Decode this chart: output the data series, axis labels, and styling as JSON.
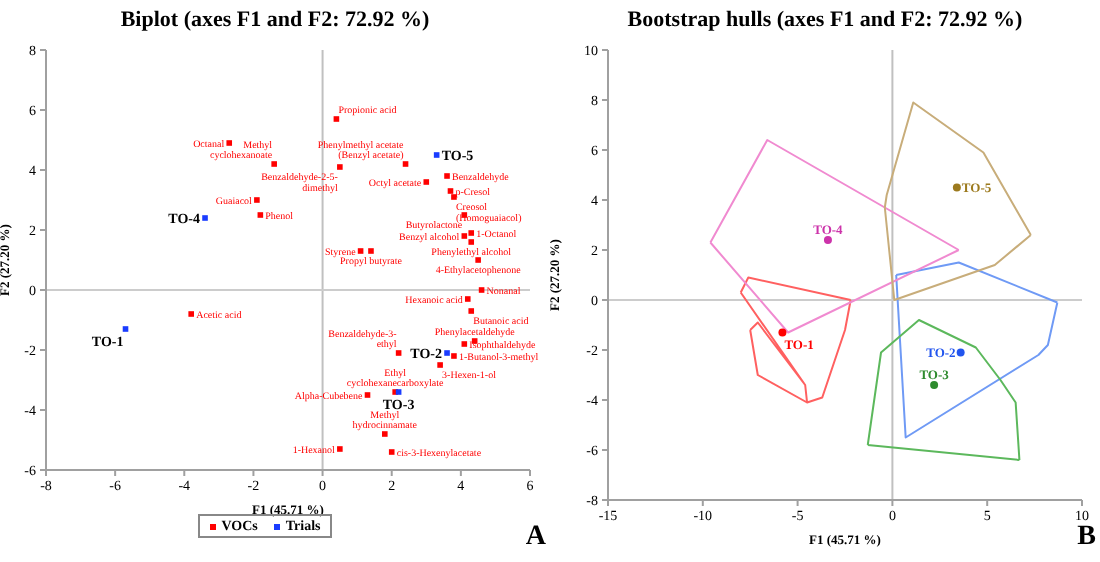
{
  "chart_data": [
    {
      "type": "scatter",
      "title": "Biplot (axes F1 and F2: 72.92 %)",
      "xlabel": "F1 (45.71 %)",
      "ylabel": "F2 (27.20 %)",
      "xlim": [
        -8,
        6
      ],
      "xticks": [
        -8,
        -6,
        -4,
        -2,
        0,
        2,
        4,
        6
      ],
      "ylim": [
        -6,
        8
      ],
      "yticks": [
        -6,
        -4,
        -2,
        0,
        2,
        4,
        6,
        8
      ],
      "grid": false,
      "legend": "bottom",
      "marker": "square",
      "ref_lines": [
        {
          "axis": "x",
          "value": 0,
          "color": "#c0c0c0"
        },
        {
          "axis": "y",
          "value": 0,
          "color": "#cccccc"
        }
      ],
      "series": [
        {
          "name": "VOCs",
          "color": "#ff0000",
          "x": [
            -2.7,
            -1.4,
            -1.9,
            -1.8,
            -3.8,
            0.4,
            2.4,
            0.5,
            3.6,
            3.0,
            3.7,
            3.8,
            4.1,
            4.3,
            4.1,
            4.3,
            1.1,
            1.4,
            4.5,
            4.6,
            4.2,
            4.3,
            4.4,
            4.1,
            3.8,
            3.4,
            2.2,
            2.1,
            1.3,
            1.8,
            2.0,
            0.5
          ],
          "values": [
            4.9,
            4.2,
            3.0,
            2.5,
            -0.8,
            5.7,
            4.2,
            4.1,
            3.8,
            3.6,
            3.3,
            3.1,
            2.5,
            1.9,
            1.8,
            1.6,
            1.3,
            1.3,
            1.0,
            0.0,
            -0.3,
            -0.7,
            -1.7,
            -1.8,
            -2.2,
            -2.5,
            -2.1,
            -3.4,
            -3.5,
            -4.8,
            -5.4,
            -5.3
          ]
        },
        {
          "name": "Trials",
          "color": "#1a3cff",
          "x": [
            -5.7,
            3.6,
            2.2,
            -3.4,
            3.3
          ],
          "values": [
            -1.3,
            -2.1,
            -3.4,
            2.4,
            4.5
          ]
        }
      ],
      "annotations": [
        "A",
        {
          "text": "Octanal",
          "x": -2.7,
          "y": 4.9
        },
        {
          "text": "Methyl cyclohexanoate",
          "x": -1.4,
          "y": 4.2
        },
        {
          "text": "Guaiacol",
          "x": -1.9,
          "y": 3.0
        },
        {
          "text": "Phenol",
          "x": -1.8,
          "y": 2.5
        },
        {
          "text": "Acetic acid",
          "x": -3.8,
          "y": -0.8
        },
        {
          "text": "Propionic acid",
          "x": 0.4,
          "y": 5.7
        },
        {
          "text": "Phenylmethyl acetate (Benzyl acetate)",
          "x": 2.4,
          "y": 4.2
        },
        {
          "text": "Benzaldehyde-2-5-dimethyl",
          "x": 0.5,
          "y": 4.1
        },
        {
          "text": "Benzaldehyde",
          "x": 3.6,
          "y": 3.8
        },
        {
          "text": "Octyl acetate",
          "x": 3.0,
          "y": 3.6
        },
        {
          "text": "p-Cresol",
          "x": 3.7,
          "y": 3.3
        },
        {
          "text": "Creosol (Homoguaiacol)",
          "x": 3.8,
          "y": 3.1
        },
        {
          "text": "Butyrolactone",
          "x": 4.1,
          "y": 2.5
        },
        {
          "text": "1-Octanol",
          "x": 4.3,
          "y": 1.9
        },
        {
          "text": "Benzyl alcohol",
          "x": 4.1,
          "y": 1.8
        },
        {
          "text": "Phenylethyl alcohol",
          "x": 4.3,
          "y": 1.6
        },
        {
          "text": "Styrene",
          "x": 1.1,
          "y": 1.3
        },
        {
          "text": "Propyl butyrate",
          "x": 1.4,
          "y": 1.3
        },
        {
          "text": "4-Ethylacetophenone",
          "x": 4.5,
          "y": 1.0
        },
        {
          "text": "Nonanal",
          "x": 4.6,
          "y": 0.0
        },
        {
          "text": "Hexanoic acid",
          "x": 4.2,
          "y": -0.3
        },
        {
          "text": "Butanoic acid",
          "x": 4.3,
          "y": -0.7
        },
        {
          "text": "Phenylacetaldehyde",
          "x": 4.4,
          "y": -1.7
        },
        {
          "text": "Isophthaldehyde",
          "x": 4.1,
          "y": -1.8
        },
        {
          "text": "1-Butanol-3-methyl",
          "x": 3.8,
          "y": -2.2
        },
        {
          "text": "3-Hexen-1-ol",
          "x": 3.4,
          "y": -2.5
        },
        {
          "text": "Benzaldehyde-3-ethyl",
          "x": 2.2,
          "y": -2.1
        },
        {
          "text": "Ethyl cyclohexanecarboxylate",
          "x": 2.1,
          "y": -3.4
        },
        {
          "text": "Alpha-Cubebene",
          "x": 1.3,
          "y": -3.5
        },
        {
          "text": "Methyl hydrocinnamate",
          "x": 1.8,
          "y": -4.8
        },
        {
          "text": "cis-3-Hexenylacetate",
          "x": 2.0,
          "y": -5.4
        },
        {
          "text": "1-Hexanol",
          "x": 0.5,
          "y": -5.3
        },
        {
          "text": "TO-1",
          "x": -5.7,
          "y": -1.3
        },
        {
          "text": "TO-2",
          "x": 3.6,
          "y": -2.1
        },
        {
          "text": "TO-3",
          "x": 2.2,
          "y": -3.4
        },
        {
          "text": "TO-4",
          "x": -3.4,
          "y": 2.4
        },
        {
          "text": "TO-5",
          "x": 3.3,
          "y": 4.5
        }
      ]
    },
    {
      "type": "line",
      "title": "Bootstrap hulls (axes F1 and F2: 72.92 %)",
      "xlabel": "F1 (45.71 %)",
      "ylabel": "F2 (27.20 %)",
      "xlim": [
        -15,
        10
      ],
      "xticks": [
        -15,
        -10,
        -5,
        0,
        5,
        10
      ],
      "ylim": [
        -8,
        10
      ],
      "yticks": [
        -8,
        -6,
        -4,
        -2,
        0,
        2,
        4,
        6,
        8,
        10
      ],
      "grid": false,
      "legend": false,
      "marker": "none",
      "line_style": "solid",
      "ref_lines": [
        {
          "axis": "x",
          "value": 0,
          "color": "#c0c0c0"
        },
        {
          "axis": "y",
          "value": 0,
          "color": "#cccccc"
        }
      ],
      "series": [
        {
          "color": "#ff6060",
          "x": [
            -8.0,
            -7.6,
            -2.2,
            null,
            -8.0,
            -4.6,
            -4.5,
            -3.7,
            -2.5,
            -2.2,
            null,
            -7.5,
            -7.1,
            -4.6,
            null,
            -7.5,
            -7.1,
            -4.5
          ],
          "values": [
            0.3,
            0.9,
            0.0,
            null,
            0.3,
            -3.4,
            -4.1,
            -3.9,
            -1.2,
            0.0,
            null,
            -1.2,
            -0.9,
            -3.4,
            null,
            -1.2,
            -3.0,
            -4.1
          ]
        },
        {
          "color": "#6f9af5",
          "x": [
            0.2,
            3.5,
            8.7,
            null,
            0.2,
            0.7,
            7.7,
            8.2,
            8.7
          ],
          "values": [
            1.0,
            1.5,
            -0.1,
            null,
            1.0,
            -5.5,
            -2.2,
            -1.8,
            -0.1
          ]
        },
        {
          "color": "#5cb85c",
          "x": [
            -1.3,
            -0.6,
            1.4,
            4.4,
            5.7,
            6.5,
            6.7,
            null,
            -1.3,
            6.7
          ],
          "values": [
            -5.8,
            -2.1,
            -0.8,
            -1.9,
            -3.2,
            -4.1,
            -6.4,
            null,
            -5.8,
            -6.4
          ]
        },
        {
          "color": "#f08ad0",
          "x": [
            -9.6,
            -6.6,
            3.5,
            null,
            -9.6,
            -5.5,
            3.5
          ],
          "values": [
            2.3,
            6.4,
            2.0,
            null,
            2.3,
            -1.3,
            2.0
          ]
        },
        {
          "color": "#c8ad7a",
          "x": [
            -0.4,
            -0.3,
            1.1,
            4.8,
            7.3,
            null,
            -0.4,
            0.1,
            5.4,
            7.3
          ],
          "values": [
            3.7,
            4.2,
            7.9,
            5.9,
            2.6,
            null,
            3.7,
            0.0,
            1.4,
            2.6
          ]
        },
        {
          "type": "scatter",
          "marker": "circle",
          "colors": [
            "#ff0000",
            "#2255ee",
            "#2e8b2e",
            "#cc33aa",
            "#9c7a1e"
          ],
          "x": [
            -5.8,
            3.6,
            2.2,
            -3.4,
            3.4
          ],
          "values": [
            -1.3,
            -2.1,
            -3.4,
            2.4,
            4.5
          ]
        }
      ],
      "annotations": [
        "B",
        {
          "text": "TO-1",
          "x": -5.8,
          "y": -1.3
        },
        {
          "text": "TO-2",
          "x": 3.6,
          "y": -2.1
        },
        {
          "text": "TO-3",
          "x": 2.2,
          "y": -3.4
        },
        {
          "text": "TO-4",
          "x": -3.4,
          "y": 2.4
        },
        {
          "text": "TO-5",
          "x": 3.4,
          "y": 4.5
        }
      ]
    }
  ]
}
